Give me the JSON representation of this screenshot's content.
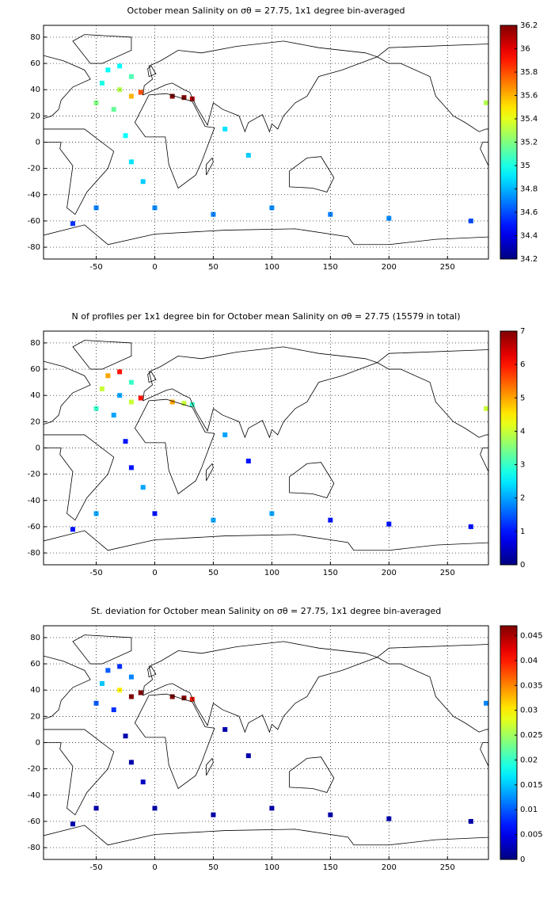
{
  "chart_data": [
    {
      "type": "map",
      "title": "October mean Salinity on σθ = 27.75, 1x1 degree bin-averaged",
      "colormap": "jet",
      "grid": true,
      "xlim": [
        -95,
        285
      ],
      "ylim": [
        -89,
        89
      ],
      "xticks": [
        -50,
        0,
        50,
        100,
        150,
        200,
        250
      ],
      "yticks": [
        -80,
        -60,
        -40,
        -20,
        0,
        20,
        40,
        60,
        80
      ],
      "clim": [
        34.2,
        36.2
      ],
      "cticks": [
        34.2,
        34.4,
        34.6,
        34.8,
        35,
        35.2,
        35.4,
        35.6,
        35.8,
        36,
        36.2
      ],
      "x": [
        -40,
        -30,
        -20,
        -45,
        -30,
        -20,
        -12,
        -50,
        -35,
        15,
        25,
        32,
        -25,
        -20,
        -10,
        60,
        80,
        -50,
        0,
        50,
        100,
        150,
        200,
        -70,
        283,
        270
      ],
      "y": [
        55,
        58,
        50,
        45,
        40,
        35,
        38,
        30,
        25,
        35,
        34,
        33,
        5,
        -15,
        -30,
        10,
        -10,
        -50,
        -50,
        -55,
        -50,
        -55,
        -58,
        -62,
        30,
        -60
      ],
      "values": [
        34.95,
        34.95,
        35.1,
        35.0,
        35.3,
        35.6,
        35.8,
        35.2,
        35.15,
        36.2,
        36.2,
        36.1,
        34.95,
        34.9,
        34.85,
        34.9,
        34.85,
        34.7,
        34.72,
        34.7,
        34.72,
        34.7,
        34.72,
        34.55,
        35.3,
        34.6
      ]
    },
    {
      "type": "map",
      "title": "N of profiles per 1x1 degree bin for October mean Salinity on σθ = 27.75 (15579 in total)",
      "colormap": "jet",
      "grid": true,
      "xlim": [
        -95,
        285
      ],
      "ylim": [
        -89,
        89
      ],
      "xticks": [
        -50,
        0,
        50,
        100,
        150,
        200,
        250
      ],
      "yticks": [
        -80,
        -60,
        -40,
        -20,
        0,
        20,
        40,
        60,
        80
      ],
      "clim": [
        0,
        7
      ],
      "cticks": [
        0,
        1,
        2,
        3,
        4,
        5,
        6,
        7
      ],
      "x": [
        -40,
        -30,
        -20,
        -45,
        -30,
        -20,
        -12,
        -50,
        -35,
        15,
        25,
        32,
        -25,
        -20,
        -10,
        60,
        80,
        -50,
        0,
        50,
        100,
        150,
        200,
        -70,
        283,
        270
      ],
      "y": [
        55,
        58,
        50,
        45,
        40,
        35,
        38,
        30,
        25,
        35,
        34,
        33,
        5,
        -15,
        -30,
        10,
        -10,
        -50,
        -50,
        -55,
        -50,
        -55,
        -58,
        -62,
        30,
        -60
      ],
      "values": [
        5,
        6,
        3,
        4,
        2,
        4,
        6,
        3,
        2,
        5,
        4,
        3,
        1,
        1,
        2,
        2,
        1,
        2,
        1,
        2,
        2,
        1,
        1,
        1,
        4,
        1
      ]
    },
    {
      "type": "map",
      "title": "St. deviation for October mean Salinity on σθ = 27.75, 1x1 degree bin-averaged",
      "colormap": "jet",
      "grid": true,
      "xlim": [
        -95,
        285
      ],
      "ylim": [
        -89,
        89
      ],
      "xticks": [
        -50,
        0,
        50,
        100,
        150,
        200,
        250
      ],
      "yticks": [
        -80,
        -60,
        -40,
        -20,
        0,
        20,
        40,
        60,
        80
      ],
      "clim": [
        0,
        0.047
      ],
      "cticks": [
        0,
        0.005,
        0.01,
        0.015,
        0.02,
        0.025,
        0.03,
        0.035,
        0.04,
        0.045
      ],
      "x": [
        -40,
        -30,
        -20,
        -45,
        -30,
        -20,
        -12,
        -50,
        -35,
        15,
        25,
        32,
        -25,
        -20,
        -10,
        60,
        80,
        -50,
        0,
        50,
        100,
        150,
        200,
        -70,
        283,
        270
      ],
      "y": [
        55,
        58,
        50,
        45,
        40,
        35,
        38,
        30,
        25,
        35,
        34,
        33,
        5,
        -15,
        -30,
        10,
        -10,
        -50,
        -50,
        -55,
        -50,
        -55,
        -58,
        -62,
        30,
        -60
      ],
      "values": [
        0.01,
        0.008,
        0.012,
        0.015,
        0.03,
        0.047,
        0.047,
        0.01,
        0.008,
        0.047,
        0.047,
        0.04,
        0.002,
        0.002,
        0.003,
        0.002,
        0.002,
        0.002,
        0.002,
        0.002,
        0.002,
        0.002,
        0.002,
        0.002,
        0.012,
        0.002
      ]
    }
  ]
}
